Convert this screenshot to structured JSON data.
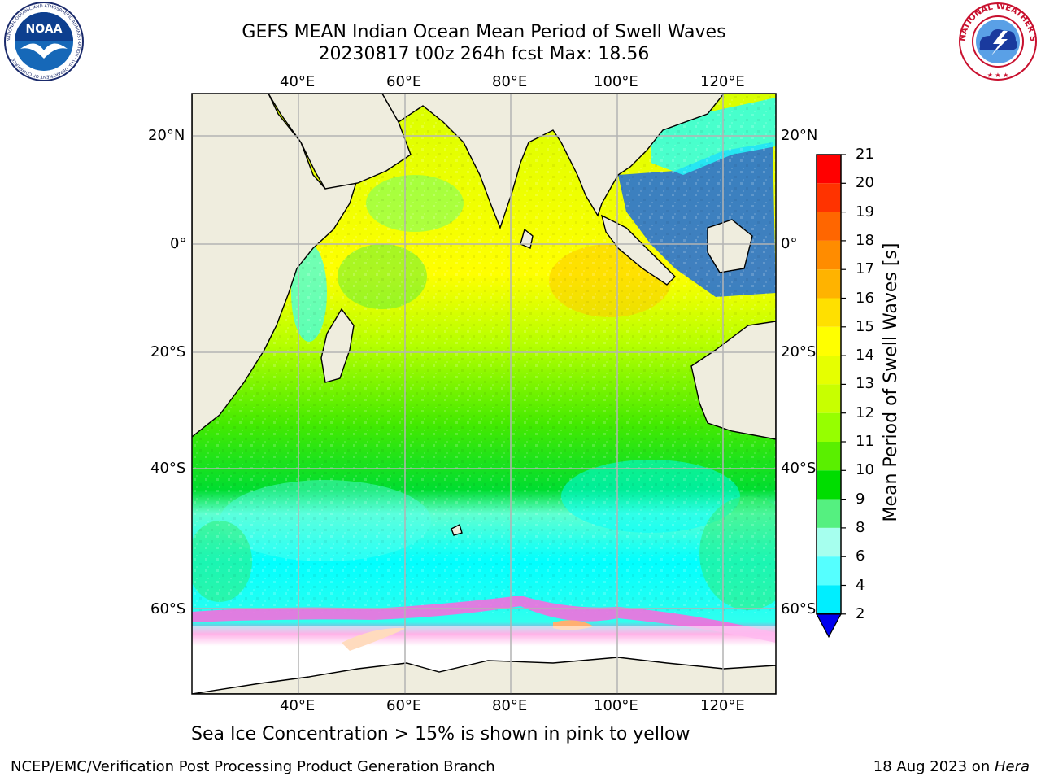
{
  "header": {
    "title_line1": "GEFS MEAN Indian Ocean Mean Period of Swell Waves",
    "title_line2": "20230817 t00z 264h fcst   Max: 18.56"
  },
  "logos": {
    "left": {
      "text": "NOAA",
      "ring_text": "NATIONAL OCEANIC AND ATMOSPHERIC ADMINISTRATION · U.S. DEPARTMENT OF COMMERCE"
    },
    "right": {
      "ring_text": "NATIONAL WEATHER SERVICE"
    }
  },
  "map": {
    "lon_labels": [
      "40°E",
      "60°E",
      "80°E",
      "100°E",
      "120°E"
    ],
    "lat_labels": [
      "20°N",
      "0°",
      "20°S",
      "40°S",
      "60°S"
    ],
    "lon_range": [
      20,
      130
    ],
    "lat_range": [
      -83,
      28
    ],
    "grid_lons": [
      40,
      60,
      80,
      100,
      120
    ],
    "grid_lats": [
      20,
      0,
      -20,
      -40,
      -60
    ],
    "colors": {
      "land": "#efedde",
      "grid": "#b4b4b4",
      "coast": "#000000",
      "seaice": "#ffffff"
    }
  },
  "colorbar": {
    "label": "Mean Period of Swell Waves [s]",
    "ticks": [
      "21",
      "20",
      "19",
      "18",
      "17",
      "16",
      "15",
      "14",
      "13",
      "12",
      "11",
      "10",
      "9",
      "8",
      "6",
      "4",
      "2"
    ],
    "colors": [
      "#ff0000",
      "#ff3300",
      "#ff6600",
      "#ff8c00",
      "#ffb300",
      "#ffe000",
      "#ffff00",
      "#e6ff00",
      "#c8ff00",
      "#96ff00",
      "#5aef00",
      "#00dd00",
      "#55f080",
      "#a6ffee",
      "#55ffff",
      "#00eeff",
      "#00aaff",
      "#0070ff"
    ],
    "extend_color": "#0000ee"
  },
  "caption": "Sea Ice Concentration > 15% is shown in pink to yellow",
  "footer": {
    "left": "NCEP/EMC/Verification Post Processing Product Generation Branch",
    "date": "18 Aug 2023 on ",
    "host": "Hera"
  }
}
